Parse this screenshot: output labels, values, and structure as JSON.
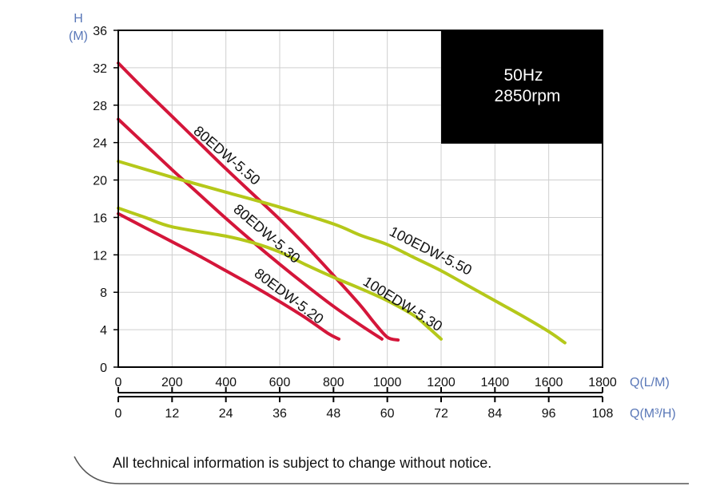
{
  "chart_data": {
    "type": "line",
    "y_axis": {
      "label_line1": "H",
      "label_line2": "(M)",
      "ticks": [
        0,
        4,
        8,
        12,
        16,
        20,
        24,
        28,
        32,
        36
      ],
      "ylim": [
        0,
        36
      ]
    },
    "x_axis_lpm": {
      "unit": "Q(L/M)",
      "ticks": [
        0,
        200,
        400,
        600,
        800,
        1000,
        1200,
        1400,
        1600,
        1800
      ],
      "xlim": [
        0,
        1800
      ]
    },
    "x_axis_m3h": {
      "unit": "Q(M³/H)",
      "ticks": [
        0,
        12,
        24,
        36,
        48,
        60,
        72,
        84,
        96,
        108
      ]
    },
    "grid": true,
    "condition_box": {
      "line1": "50Hz",
      "line2": "2850rpm",
      "color": "#000000"
    },
    "series": [
      {
        "name": "80EDW-5.50",
        "color": "#d4163a",
        "points": [
          [
            0,
            32.5
          ],
          [
            100,
            29.6
          ],
          [
            200,
            26.8
          ],
          [
            300,
            24.0
          ],
          [
            400,
            21.2
          ],
          [
            500,
            18.5
          ],
          [
            600,
            15.8
          ],
          [
            700,
            12.9
          ],
          [
            800,
            9.8
          ],
          [
            900,
            6.6
          ],
          [
            950,
            4.8
          ],
          [
            1000,
            3.2
          ],
          [
            1040,
            2.9
          ]
        ]
      },
      {
        "name": "80EDW-5.30",
        "color": "#d4163a",
        "points": [
          [
            0,
            26.5
          ],
          [
            100,
            23.8
          ],
          [
            200,
            21.1
          ],
          [
            300,
            18.5
          ],
          [
            400,
            15.9
          ],
          [
            500,
            13.4
          ],
          [
            600,
            11.0
          ],
          [
            700,
            8.7
          ],
          [
            800,
            6.5
          ],
          [
            900,
            4.5
          ],
          [
            980,
            3.0
          ]
        ]
      },
      {
        "name": "80EDW-5.20",
        "color": "#d4163a",
        "points": [
          [
            0,
            16.4
          ],
          [
            100,
            14.9
          ],
          [
            200,
            13.4
          ],
          [
            300,
            11.9
          ],
          [
            400,
            10.3
          ],
          [
            500,
            8.7
          ],
          [
            600,
            7.0
          ],
          [
            700,
            5.2
          ],
          [
            780,
            3.6
          ],
          [
            820,
            3.0
          ]
        ]
      },
      {
        "name": "100EDW-5.50",
        "color": "#b5c81a",
        "points": [
          [
            0,
            22.0
          ],
          [
            200,
            20.3
          ],
          [
            400,
            18.7
          ],
          [
            600,
            17.1
          ],
          [
            800,
            15.3
          ],
          [
            900,
            14.1
          ],
          [
            1000,
            13.1
          ],
          [
            1100,
            11.7
          ],
          [
            1200,
            10.3
          ],
          [
            1300,
            8.7
          ],
          [
            1400,
            7.1
          ],
          [
            1500,
            5.5
          ],
          [
            1600,
            3.8
          ],
          [
            1660,
            2.6
          ]
        ]
      },
      {
        "name": "100EDW-5.30",
        "color": "#b5c81a",
        "points": [
          [
            0,
            17.0
          ],
          [
            100,
            16.0
          ],
          [
            200,
            15.0
          ],
          [
            400,
            14.0
          ],
          [
            500,
            13.3
          ],
          [
            600,
            12.3
          ],
          [
            700,
            10.9
          ],
          [
            800,
            9.6
          ],
          [
            900,
            8.4
          ],
          [
            1000,
            7.1
          ],
          [
            1100,
            5.5
          ],
          [
            1150,
            4.3
          ],
          [
            1200,
            3.0
          ]
        ]
      }
    ]
  },
  "footer": {
    "note": "All technical information is subject to change without notice."
  }
}
